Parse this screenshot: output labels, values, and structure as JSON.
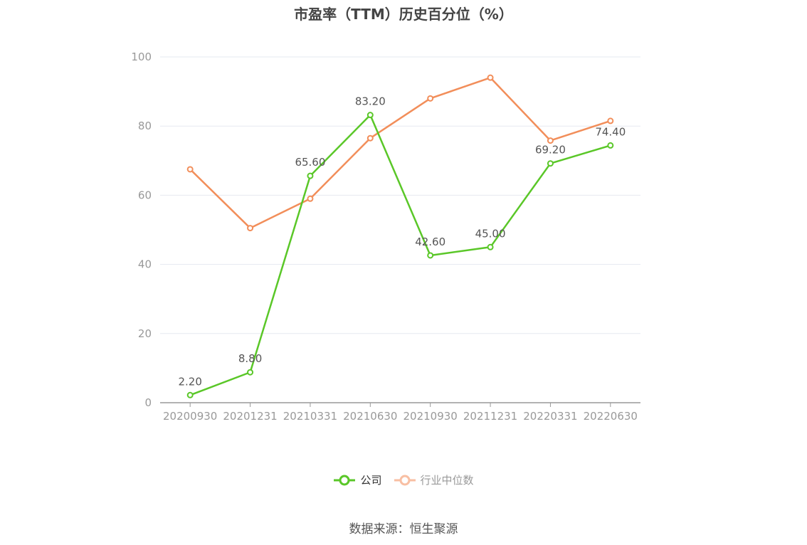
{
  "chart_data": {
    "type": "line",
    "title": "市盈率（TTM）历史百分位（%）",
    "categories": [
      "20200930",
      "20201231",
      "20210331",
      "20210630",
      "20210930",
      "20211231",
      "20220331",
      "20220630"
    ],
    "series": [
      {
        "name": "公司",
        "color": "#5ac728",
        "values": [
          2.2,
          8.8,
          65.6,
          83.2,
          42.6,
          45.0,
          69.2,
          74.4
        ],
        "labels": [
          "2.20",
          "8.80",
          "65.60",
          "83.20",
          "42.60",
          "45.00",
          "69.20",
          "74.40"
        ]
      },
      {
        "name": "行业中位数",
        "color": "#f28e5a",
        "legend_color": "#f8bfa3",
        "values": [
          67.5,
          50.5,
          59.0,
          76.5,
          88.0,
          94.0,
          75.8,
          81.5
        ]
      }
    ],
    "yticks": [
      "0",
      "20",
      "40",
      "60",
      "80",
      "100"
    ],
    "ylim": [
      0,
      100
    ],
    "grid": true,
    "legend_position": "bottom"
  },
  "source": "数据来源：恒生聚源"
}
